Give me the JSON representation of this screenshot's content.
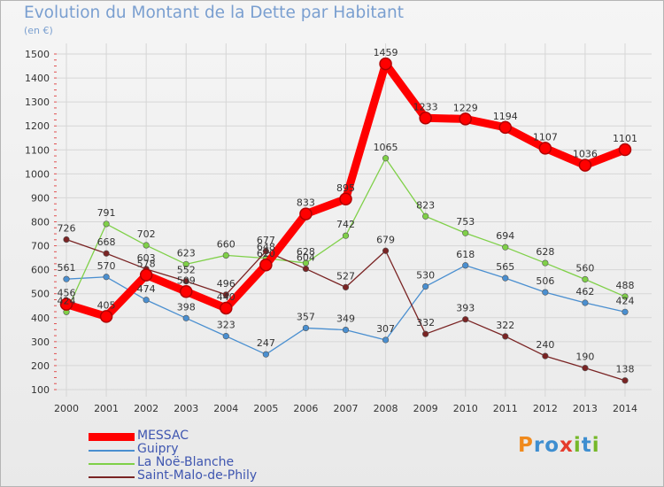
{
  "title": "Evolution du Montant de la Dette par Habitant",
  "subtitle": "(en €)",
  "logo": {
    "text": "Proxiti",
    "letters": [
      "P",
      "r",
      "o",
      "x",
      "i",
      "t",
      "i"
    ],
    "colors": [
      "#f08a1d",
      "#3e8ed0",
      "#3e8ed0",
      "#e53b2c",
      "#76b82a",
      "#3e8ed0",
      "#76b82a"
    ]
  },
  "chart_data": {
    "type": "line",
    "x": [
      "2000",
      "2001",
      "2002",
      "2003",
      "2004",
      "2005",
      "2006",
      "2007",
      "2008",
      "2009",
      "2010",
      "2011",
      "2012",
      "2013",
      "2014"
    ],
    "ylim": [
      100,
      1500
    ],
    "yticks": [
      100,
      200,
      300,
      400,
      500,
      600,
      700,
      800,
      900,
      1000,
      1100,
      1200,
      1300,
      1400,
      1500
    ],
    "grid": true,
    "legend_position": "bottom-left",
    "series": [
      {
        "name": "MESSAC",
        "color": "#ff0000",
        "values": [
          456,
          405,
          578,
          509,
          440,
          620,
          833,
          895,
          1459,
          1233,
          1229,
          1194,
          1107,
          1036,
          1101
        ],
        "labels": [
          "456",
          "405",
          "578",
          "509",
          "440",
          "620",
          "833",
          "895",
          "1459",
          "1233",
          "1229",
          "1194",
          "1107",
          "1036",
          "1101"
        ]
      },
      {
        "name": "Guipry",
        "color": "#4a8fd0",
        "values": [
          561,
          570,
          474,
          398,
          323,
          247,
          357,
          349,
          307,
          530,
          618,
          565,
          506,
          462,
          424
        ]
      },
      {
        "name": "La Noë-Blanche",
        "color": "#7fd048",
        "values": [
          424,
          791,
          702,
          623,
          660,
          648,
          628,
          742,
          1065,
          823,
          753,
          694,
          628,
          560,
          488
        ],
        "labels": [
          "424",
          "791",
          "702",
          "623",
          "660",
          "648",
          "628",
          "742",
          "1065",
          "823",
          "753",
          "694",
          "628",
          "560",
          "488"
        ]
      },
      {
        "name": "Saint-Malo-de-Phily",
        "color": "#7a2424",
        "values": [
          726,
          668,
          603,
          552,
          496,
          677,
          604,
          527,
          679,
          332,
          393,
          322,
          240,
          190,
          138
        ]
      }
    ]
  }
}
